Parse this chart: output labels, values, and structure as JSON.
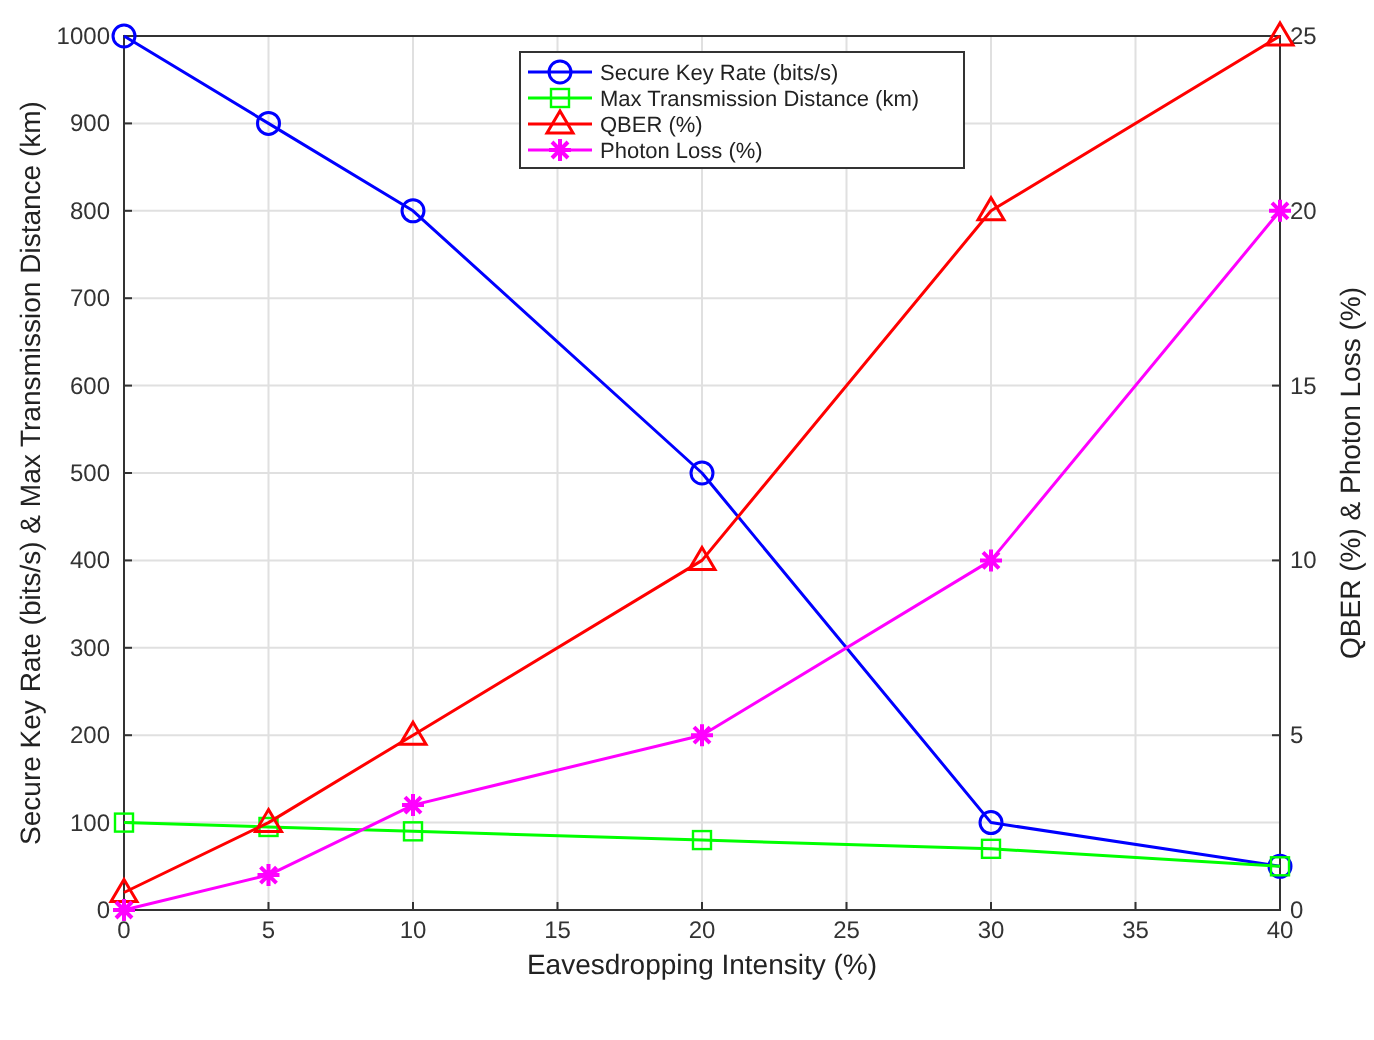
{
  "chart_data": {
    "type": "line",
    "xlabel": "Eavesdropping Intensity (%)",
    "ylabel": "Secure Key Rate (bits/s) & Max Transmission Distance (km)",
    "y2label": "QBER (%) & Photon Loss (%)",
    "x": [
      0,
      5,
      10,
      20,
      30,
      40
    ],
    "xlim": [
      0,
      40
    ],
    "xticks": [
      0,
      5,
      10,
      15,
      20,
      25,
      30,
      35,
      40
    ],
    "ylim": [
      0,
      1000
    ],
    "yticks": [
      0,
      100,
      200,
      300,
      400,
      500,
      600,
      700,
      800,
      900,
      1000
    ],
    "y2lim": [
      0,
      25
    ],
    "y2ticks": [
      0,
      5,
      10,
      15,
      20,
      25
    ],
    "grid": true,
    "legend": "top",
    "series": [
      {
        "name": "Secure Key Rate (bits/s)",
        "color": "#0000ff",
        "marker": "circle",
        "values": [
          1000,
          900,
          800,
          500,
          100,
          50
        ]
      },
      {
        "name": "Max Transmission Distance (km)",
        "color": "#00ff00",
        "marker": "square",
        "values": [
          100,
          95,
          90,
          80,
          70,
          50
        ]
      },
      {
        "name": "QBER (%)",
        "color": "#ff0000",
        "marker": "triangle",
        "axis": "y2",
        "values": [
          0.5,
          2.5,
          5,
          10,
          20,
          25
        ]
      },
      {
        "name": "Photon Loss (%)",
        "color": "#ff00ff",
        "marker": "cross",
        "axis": "y2",
        "values": [
          0,
          1,
          3,
          5,
          10,
          20
        ]
      }
    ]
  }
}
